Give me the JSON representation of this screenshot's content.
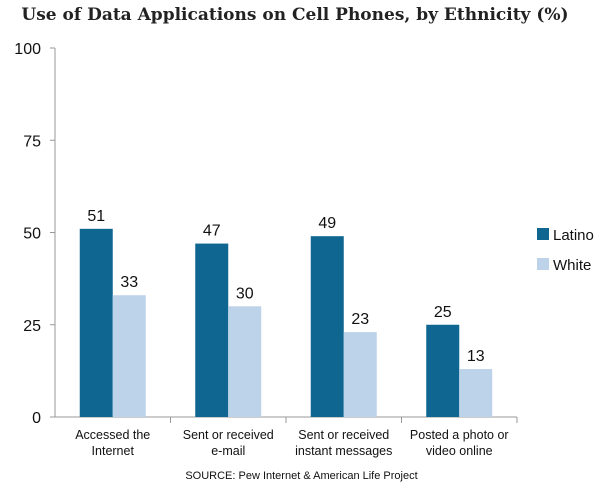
{
  "chart_data": {
    "type": "bar",
    "title": "Use of Data Applications on Cell Phones, by Ethnicity (%)",
    "xlabel": "",
    "ylabel": "",
    "ylim": [
      0,
      100
    ],
    "yticks": [
      0,
      25,
      50,
      75,
      100
    ],
    "categories": [
      [
        "Accessed the",
        "Internet"
      ],
      [
        "Sent or received",
        "e-mail"
      ],
      [
        "Sent or received",
        "instant messages"
      ],
      [
        "Posted a photo or",
        "video online"
      ]
    ],
    "series": [
      {
        "name": "Latino",
        "color": "#0F6690",
        "values": [
          51,
          47,
          49,
          25
        ]
      },
      {
        "name": "White",
        "color": "#BCD3EA",
        "values": [
          33,
          30,
          23,
          13
        ]
      }
    ],
    "legend_position": "right",
    "grid": false,
    "source": "SOURCE: Pew Internet & American Life Project"
  }
}
